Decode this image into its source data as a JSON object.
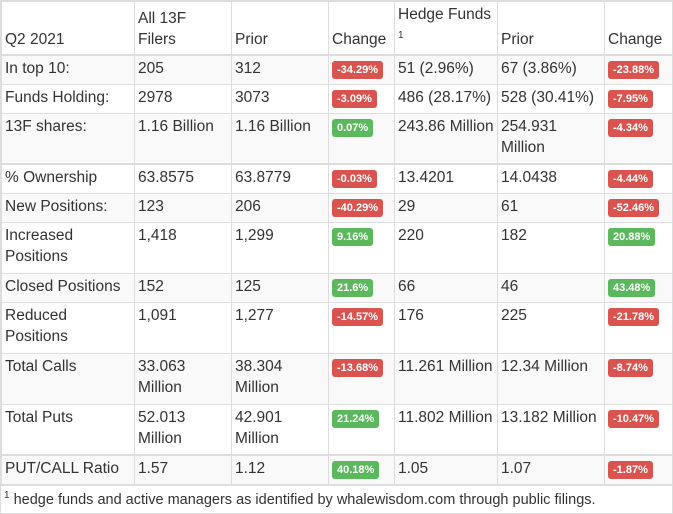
{
  "header": [
    "Q2 2021",
    "All 13F Filers",
    "Prior",
    "Change",
    "Hedge Funds",
    "Prior",
    "Change"
  ],
  "header_footnote_marker": "1",
  "rows": [
    {
      "label": "In top 10:",
      "all": "205",
      "prior": "312",
      "change": "-34.29%",
      "hf": "51 (2.96%)",
      "hf_prior": "67 (3.86%)",
      "hf_change": "-23.88%"
    },
    {
      "label": "Funds Holding:",
      "all": "2978",
      "prior": "3073",
      "change": "-3.09%",
      "hf": "486 (28.17%)",
      "hf_prior": "528 (30.41%)",
      "hf_change": "-7.95%"
    },
    {
      "label": "13F shares:",
      "all": "1.16 Billion",
      "prior": "1.16 Billion",
      "change": "0.07%",
      "hf": "243.86 Million",
      "hf_prior": "254.931 Million",
      "hf_change": "-4.34%"
    },
    {
      "label": "% Ownership",
      "all": "63.8575",
      "prior": "63.8779",
      "change": "-0.03%",
      "hf": "13.4201",
      "hf_prior": "14.0438",
      "hf_change": "-4.44%"
    },
    {
      "label": "New Positions:",
      "all": "123",
      "prior": "206",
      "change": "-40.29%",
      "hf": "29",
      "hf_prior": "61",
      "hf_change": "-52.46%"
    },
    {
      "label": "Increased Positions",
      "all": "1,418",
      "prior": "1,299",
      "change": "9.16%",
      "hf": "220",
      "hf_prior": "182",
      "hf_change": "20.88%"
    },
    {
      "label": "Closed Positions",
      "all": "152",
      "prior": "125",
      "change": "21.6%",
      "hf": "66",
      "hf_prior": "46",
      "hf_change": "43.48%"
    },
    {
      "label": "Reduced Positions",
      "all": "1,091",
      "prior": "1,277",
      "change": "-14.57%",
      "hf": "176",
      "hf_prior": "225",
      "hf_change": "-21.78%"
    },
    {
      "label": "Total Calls",
      "all": "33.063 Million",
      "prior": "38.304 Million",
      "change": "-13.68%",
      "hf": "11.261 Million",
      "hf_prior": "12.34 Million",
      "hf_change": "-8.74%"
    },
    {
      "label": "Total Puts",
      "all": "52.013 Million",
      "prior": "42.901 Million",
      "change": "21.24%",
      "hf": "11.802 Million",
      "hf_prior": "13.182 Million",
      "hf_change": "-10.47%"
    },
    {
      "label": "PUT/CALL Ratio",
      "all": "1.57",
      "prior": "1.12",
      "change": "40.18%",
      "hf": "1.05",
      "hf_prior": "1.07",
      "hf_change": "-1.87%"
    }
  ],
  "footnote_marker": "1",
  "footnote": " hedge funds and active managers as identified by whalewisdom.com through public filings.",
  "colors": {
    "negative": "#d9534f",
    "positive": "#5cb85c"
  }
}
